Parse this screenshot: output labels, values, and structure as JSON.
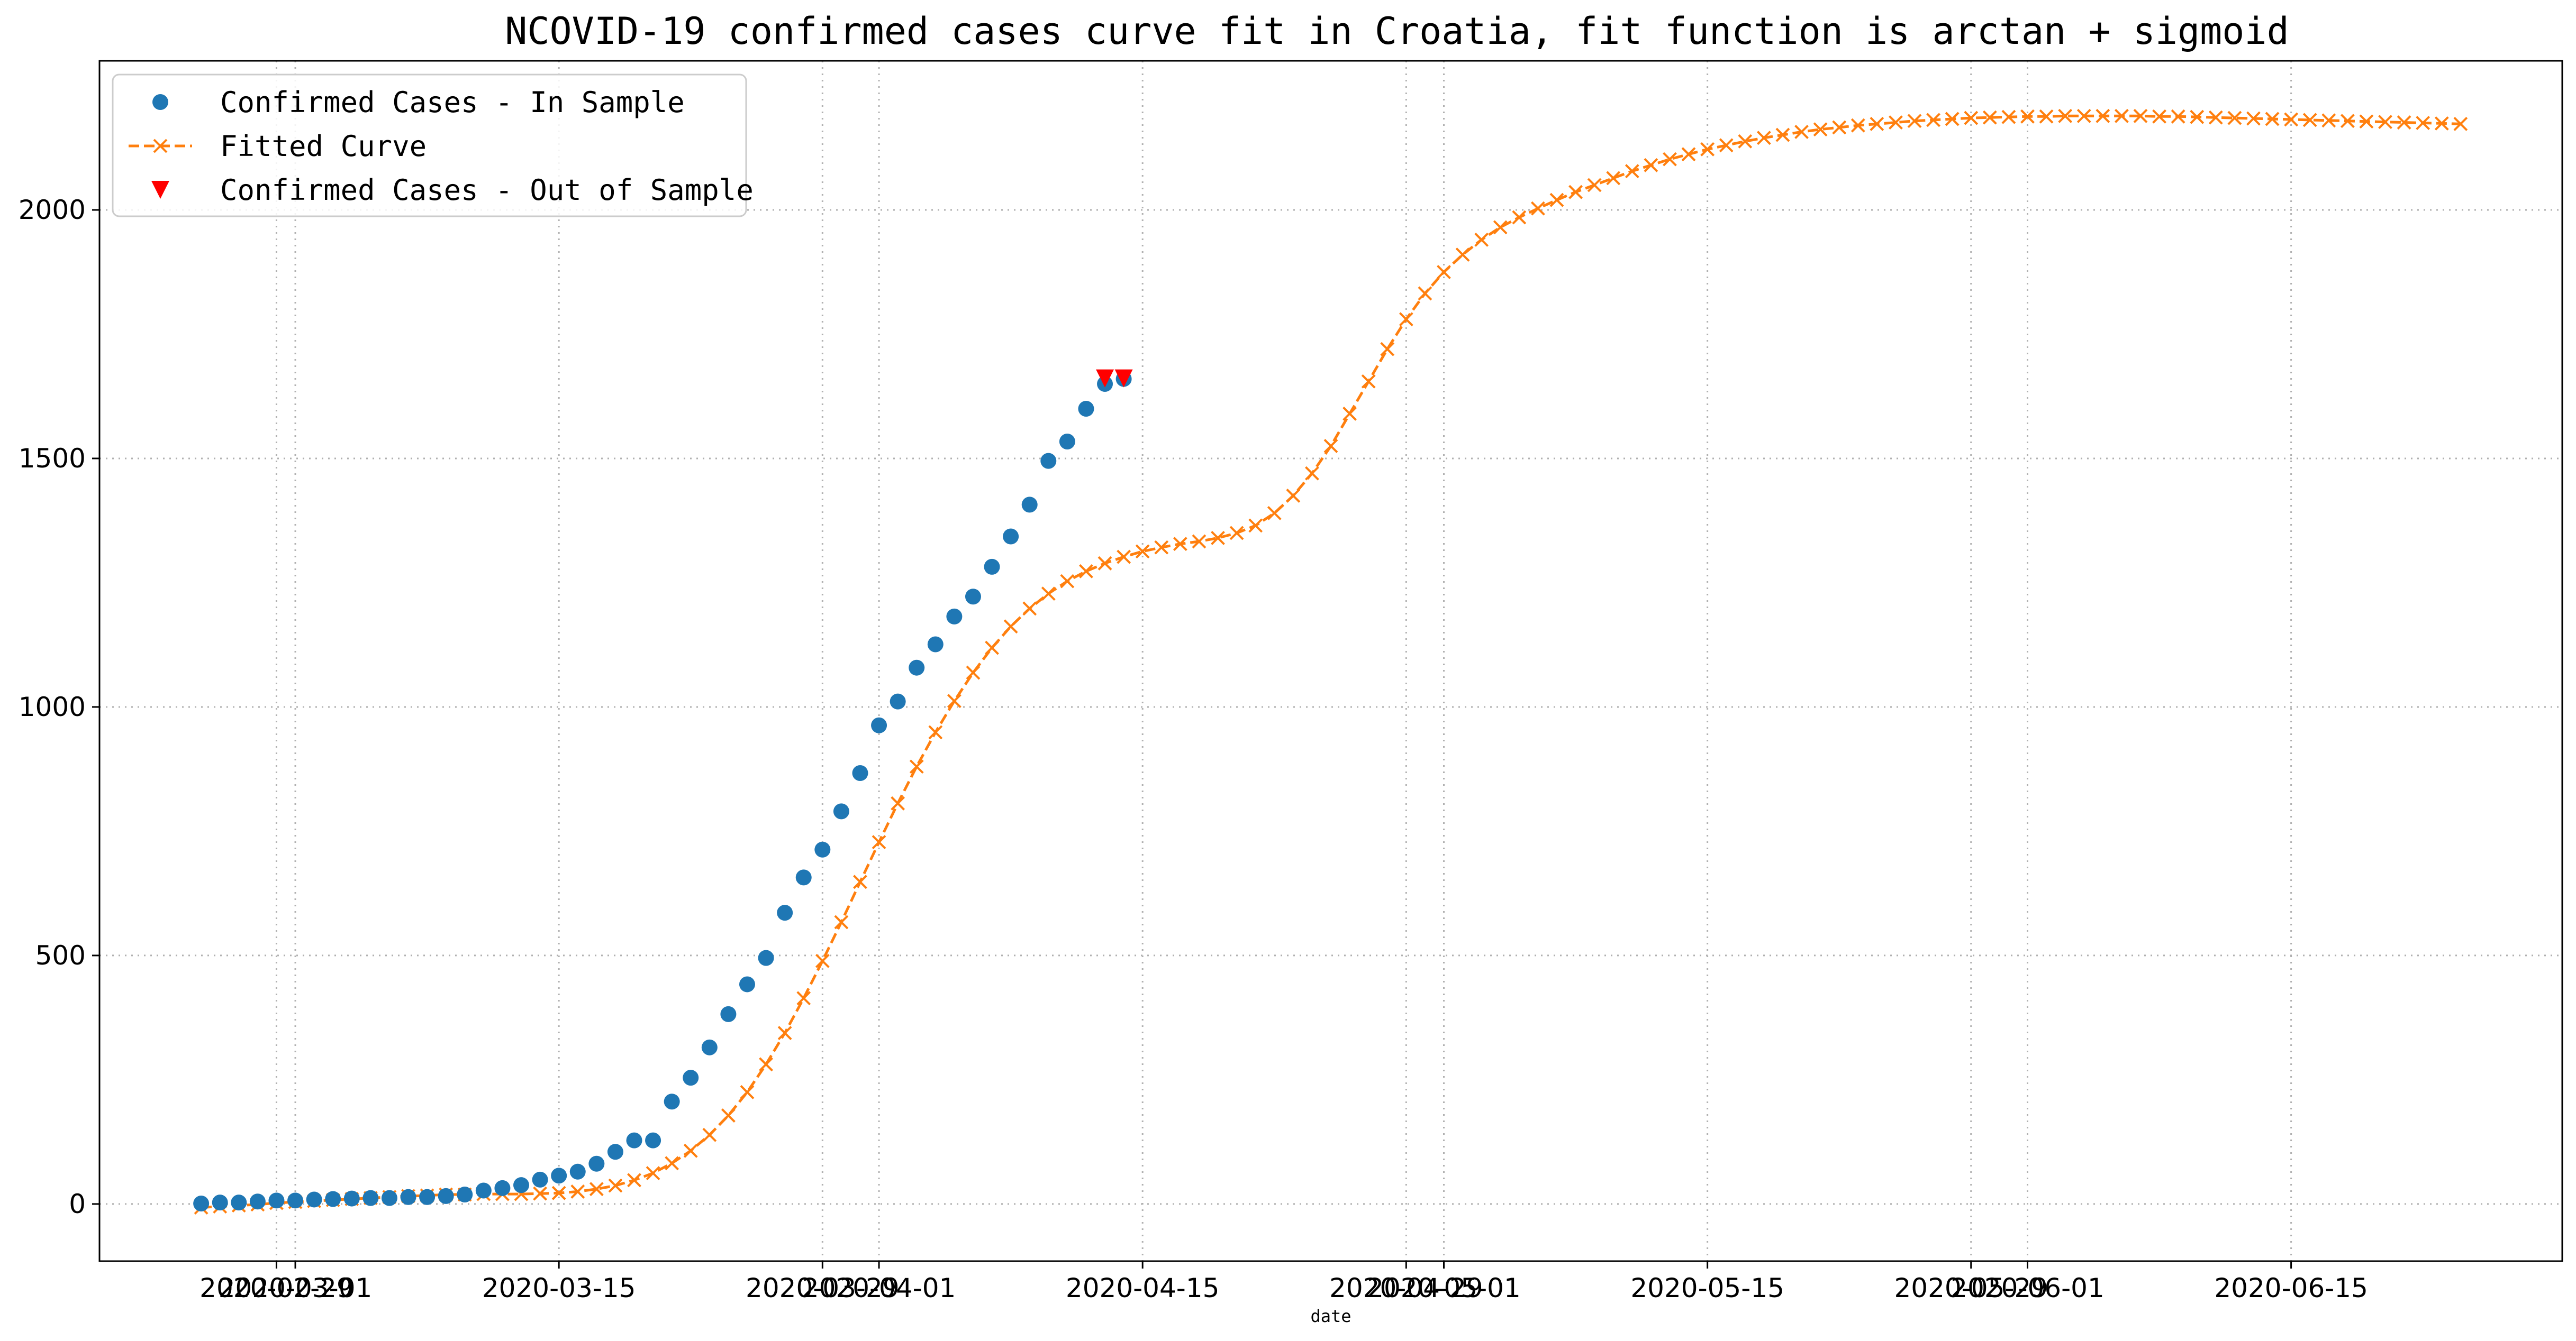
{
  "chart_data": {
    "type": "line",
    "title": "NCOVID-19 confirmed cases curve fit in Croatia, fit function is arctan + sigmoid",
    "xlabel": "date",
    "ylabel": "",
    "ylim": [
      -115,
      2300
    ],
    "grid": true,
    "legend_position": "top-left",
    "y_ticks": [
      0,
      500,
      1000,
      1500,
      2000
    ],
    "x_ticks": [
      {
        "date": "2020-02-29",
        "label": "2020-02-29"
      },
      {
        "date": "2020-03-01",
        "label": "2020-03-01"
      },
      {
        "date": "2020-03-15",
        "label": "2020-03-15"
      },
      {
        "date": "2020-03-29",
        "label": "2020-03-29"
      },
      {
        "date": "2020-04-01",
        "label": "2020-04-01"
      },
      {
        "date": "2020-04-15",
        "label": "2020-04-15"
      },
      {
        "date": "2020-04-29",
        "label": "2020-04-29"
      },
      {
        "date": "2020-05-01",
        "label": "2020-05-01"
      },
      {
        "date": "2020-05-15",
        "label": "2020-05-15"
      },
      {
        "date": "2020-05-29",
        "label": "2020-05-29"
      },
      {
        "date": "2020-06-01",
        "label": "2020-06-01"
      },
      {
        "date": "2020-06-15",
        "label": "2020-06-15"
      }
    ],
    "series": [
      {
        "name": "Confirmed Cases - In Sample",
        "style": "markers",
        "marker": "circle",
        "color": "#1f77b4",
        "start_date": "2020-02-25",
        "values": [
          1,
          3,
          3,
          5,
          7,
          7,
          9,
          10,
          11,
          12,
          12,
          14,
          14,
          16,
          19,
          27,
          32,
          38,
          49,
          57,
          65,
          81,
          105,
          128,
          128,
          206,
          254,
          315,
          382,
          442,
          495,
          586,
          657,
          713,
          790,
          867,
          963,
          1011,
          1079,
          1126,
          1182,
          1222,
          1282,
          1343,
          1407,
          1495,
          1534,
          1600,
          1650,
          1660
        ]
      },
      {
        "name": "Fitted Curve",
        "style": "dashed-line-x-markers",
        "color": "#ff7f0e",
        "start_date": "2020-02-25",
        "values": [
          -7,
          -5,
          -3,
          -1,
          2,
          4,
          6,
          8,
          10,
          12,
          14,
          16,
          17,
          19,
          19,
          20,
          20,
          20,
          21,
          22,
          25,
          30,
          37,
          48,
          62,
          82,
          107,
          139,
          178,
          225,
          281,
          344,
          414,
          489,
          567,
          648,
          728,
          806,
          880,
          949,
          1012,
          1069,
          1119,
          1162,
          1198,
          1228,
          1253,
          1273,
          1289,
          1302,
          1313,
          1321,
          1328,
          1333,
          1340,
          1350,
          1365,
          1390,
          1425,
          1470,
          1525,
          1590,
          1655,
          1720,
          1780,
          1832,
          1875,
          1910,
          1940,
          1965,
          1985,
          2003,
          2020,
          2036,
          2050,
          2064,
          2078,
          2090,
          2102,
          2112,
          2122,
          2130,
          2138,
          2145,
          2151,
          2157,
          2162,
          2166,
          2170,
          2173,
          2176,
          2179,
          2181,
          2183,
          2185,
          2186,
          2187,
          2188,
          2188,
          2189,
          2189,
          2189,
          2189,
          2189,
          2188,
          2188,
          2187,
          2186,
          2185,
          2184,
          2183,
          2182,
          2181,
          2180,
          2179,
          2178,
          2177,
          2176,
          2175,
          2174,
          2173
        ]
      },
      {
        "name": "Confirmed Cases - Out of Sample",
        "style": "markers",
        "marker": "triangle-down",
        "color": "#ff0000",
        "points": [
          {
            "date": "2020-04-13",
            "value": 1661
          },
          {
            "date": "2020-04-14",
            "value": 1661
          }
        ]
      }
    ]
  }
}
